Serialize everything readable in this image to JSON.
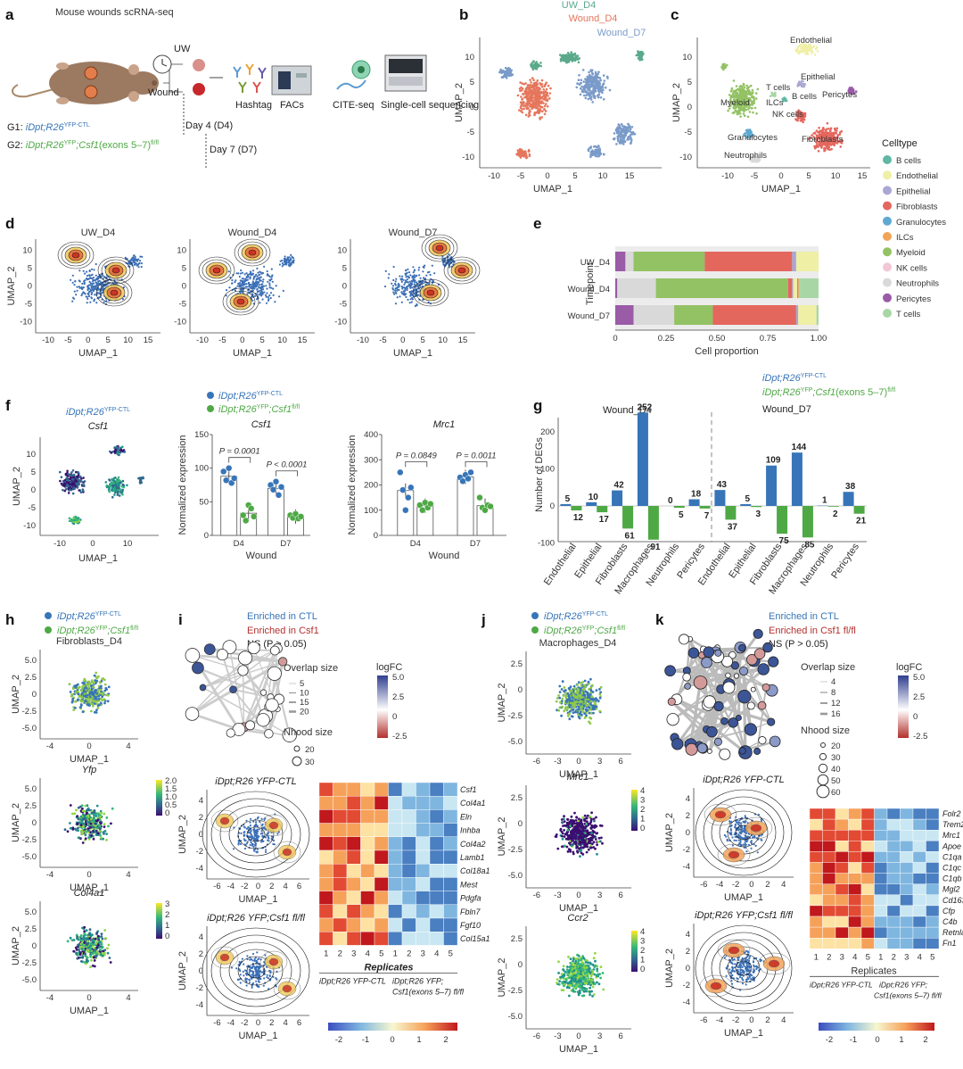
{
  "panel_labels": [
    "a",
    "b",
    "c",
    "d",
    "e",
    "f",
    "g",
    "h",
    "i",
    "j",
    "k"
  ],
  "colors": {
    "B cells": "#5fb8a4",
    "Endothelial": "#efefa6",
    "Epithelial": "#aaa7d3",
    "Fibroblasts": "#e4675e",
    "Granulocytes": "#5ea9d2",
    "ILCs": "#f2a457",
    "Myeloid": "#93c264",
    "NK cells": "#f2c6d6",
    "Neutrophils": "#d9d9d9",
    "Pericytes": "#9a5ba7",
    "T cells": "#a8d7a5",
    "ctl": "#3775b8",
    "csf1": "#4ea945",
    "uw": "#5aa98b",
    "wound_d4": "#e5765c",
    "wound_d7": "#7a9bc9"
  },
  "panel_a": {
    "title": "Mouse wounds scRNA-seq",
    "uw": "UW",
    "wound": "Wound",
    "steps": [
      "Hashtag",
      "FACs",
      "CITE-seq",
      "Single-cell sequencing"
    ],
    "g1_prefix": "G1: ",
    "g1": "iDpt;R26",
    "g1_sup": "YFP-CTL",
    "g2_prefix": "G2: ",
    "g2": "iDpt;R26",
    "g2_sup": "YFP",
    "g2_tail": ";Csf1",
    "g2_exons": "(exons 5–7)",
    "g2_sup2": "fl/fl",
    "day4": "Day 4 (D4)",
    "day7": "Day 7 (D7)"
  },
  "panel_b": {
    "legend": [
      "UW_D4",
      "Wound_D4",
      "Wound_D7"
    ],
    "xlabel": "UMAP_1",
    "ylabel": "UMAP_2",
    "xticks": [
      "-10",
      "-5",
      "0",
      "5",
      "10",
      "15"
    ],
    "yticks": [
      "10",
      "5",
      "0",
      "-5",
      "-10"
    ]
  },
  "panel_c": {
    "labels": [
      "Endothelial",
      "Epithelial",
      "T cells",
      "B cells",
      "Pericytes",
      "Myeloid",
      "ILCs",
      "NK cells",
      "Granulocytes",
      "Fibroblasts",
      "Neutrophils"
    ],
    "xlabel": "UMAP_1",
    "ylabel": "UMAP_2",
    "legend_title": "Celltype",
    "legend": [
      "B cells",
      "Endothelial",
      "Epithelial",
      "Fibroblasts",
      "Granulocytes",
      "ILCs",
      "Myeloid",
      "NK cells",
      "Neutrophils",
      "Pericytes",
      "T cells"
    ]
  },
  "panel_d": {
    "titles": [
      "UW_D4",
      "Wound_D4",
      "Wound_D7"
    ],
    "xlabel": "UMAP_1",
    "ylabel": "UMAP_2"
  },
  "panel_f_umap": {
    "title": "iDpt;R26",
    "title_sup": "YFP-CTL",
    "gene": "Csf1",
    "xlabel": "UMAP_1",
    "ylabel": "UMAP_2"
  },
  "panel_f_legend": {
    "ctl": "iDpt;R26",
    "ctl_sup": "YFP-CTL",
    "csf1": "iDpt;R26",
    "csf1_sup": "YFP",
    "csf1_tail": ";Csf1",
    "csf1_sup2": "fl/fl"
  },
  "panel_h": {
    "legend_ctl": "iDpt;R26",
    "legend_ctl_sup": "YFP-CTL",
    "legend_csf1": "iDpt;R26",
    "legend_csf1_sup": "YFP",
    "legend_csf1_tail": ";Csf1",
    "legend_csf1_sup2": "fl/fl",
    "titles": [
      "Fibroblasts_D4",
      "Yfp",
      "Col4a1"
    ],
    "xlabel": "UMAP_1",
    "ylabel": "UMAP_2"
  },
  "panel_i": {
    "enriched_ctl": "Enriched in CTL",
    "enriched_csf1": "Enriched in Csf1",
    "enriched_sup": "fl/fl",
    "ns": "NS (P > 0.05)",
    "overlap_title": "Overlap size",
    "overlap": [
      "5",
      "10",
      "15",
      "20"
    ],
    "nhood_title": "Nhood size",
    "nhood": [
      "20",
      "30"
    ],
    "logfc_title": "logFC",
    "logfc_ticks": [
      "5.0",
      "2.5",
      "0",
      "-2.5"
    ],
    "kde1_title": "iDpt;R26",
    "kde1_sup": "YFP-CTL",
    "kde2_title": "iDpt;R26",
    "kde2_sup": "YFP",
    "kde2_tail": ";Csf1",
    "kde2_sup2": "fl/fl",
    "genes": [
      "Csf1",
      "Col4a1",
      "Eln",
      "Inhba",
      "Col4a2",
      "Lamb1",
      "Col18a1",
      "Mest",
      "Pdgfa",
      "Fbln7",
      "Fgf10",
      "Col15a1"
    ],
    "replicates": "Replicates",
    "rep_ctl": "iDpt;R26",
    "rep_ctl_sup": "YFP-CTL",
    "rep_csf1": "iDpt;R26",
    "rep_csf1_sup": "YFP",
    "rep_csf1_tail": ";",
    "rep_csf1_l2": "Csf1(exons 5–7)",
    "rep_csf1_sup2": "fl/fl",
    "cbar_ticks": [
      "-2",
      "-1",
      "0",
      "1",
      "2"
    ]
  },
  "panel_j": {
    "legend_ctl": "iDpt;R26",
    "legend_ctl_sup": "YFP-CTL",
    "legend_csf1": "iDpt;R26",
    "legend_csf1_sup": "YFP",
    "legend_csf1_tail": ";Csf1",
    "legend_csf1_sup2": "fl/fl",
    "titles": [
      "Macrophages_D4",
      "Mrc1",
      "Ccr2"
    ],
    "xlabel": "UMAP_1",
    "ylabel": "UMAP_2"
  },
  "panel_k": {
    "enriched_ctl": "Enriched in CTL",
    "enriched_csf1": "Enriched in Csf1",
    "enriched_sup": "fl/fl",
    "ns": "NS (P > 0.05)",
    "overlap_title": "Overlap size",
    "overlap": [
      "4",
      "8",
      "12",
      "16"
    ],
    "nhood_title": "Nhood size",
    "nhood": [
      "20",
      "30",
      "40",
      "50",
      "60"
    ],
    "logfc_title": "logFC",
    "logfc_ticks": [
      "5.0",
      "2.5",
      "0",
      "-2.5"
    ],
    "genes": [
      "Folr2",
      "Trem2",
      "Mrc1",
      "Apoe",
      "C1qa",
      "C1qc",
      "C1qb",
      "Mgl2",
      "Cd163",
      "Cfp",
      "C4b",
      "Retnla",
      "Fn1"
    ],
    "replicates": "Replicates",
    "cbar_ticks": [
      "-2",
      "-1",
      "0",
      "1",
      "2"
    ]
  },
  "chart_data": [
    {
      "id": "e",
      "type": "bar",
      "orientation": "horizontal",
      "stacked": true,
      "title": "",
      "xlabel": "Cell proportion",
      "ylabel": "Timepoint",
      "categories": [
        "UW_D4",
        "Wound_D4",
        "Wound_D7"
      ],
      "xlim": [
        0,
        1
      ],
      "xticks": [
        "0",
        "0.25",
        "0.50",
        "0.75",
        "1.00"
      ],
      "series": [
        {
          "name": "B cells",
          "values": [
            0.0,
            0.0,
            0.0
          ]
        },
        {
          "name": "Endothelial",
          "values": [
            0.11,
            0.02,
            0.09
          ]
        },
        {
          "name": "Epithelial",
          "values": [
            0.02,
            0.005,
            0.01
          ]
        },
        {
          "name": "Fibroblasts",
          "values": [
            0.43,
            0.02,
            0.41
          ]
        },
        {
          "name": "Granulocytes",
          "values": [
            0.0,
            0.005,
            0.0
          ]
        },
        {
          "name": "ILCs",
          "values": [
            0.0,
            0.005,
            0.0
          ]
        },
        {
          "name": "Myeloid",
          "values": [
            0.35,
            0.65,
            0.19
          ]
        },
        {
          "name": "NK cells",
          "values": [
            0.0,
            0.0,
            0.0
          ]
        },
        {
          "name": "Neutrophils",
          "values": [
            0.04,
            0.19,
            0.2
          ]
        },
        {
          "name": "Pericytes",
          "values": [
            0.05,
            0.01,
            0.09
          ]
        },
        {
          "name": "T cells",
          "values": [
            0.0,
            0.01,
            0.01
          ]
        }
      ]
    },
    {
      "id": "f_csf1",
      "type": "bar",
      "title": "Csf1",
      "xlabel": "Wound",
      "ylabel": "Normalized expression",
      "categories": [
        "D4",
        "D7"
      ],
      "ylim": [
        0,
        150
      ],
      "yticks": [
        "0",
        "50",
        "100",
        "150"
      ],
      "series": [
        {
          "name": "iDpt;R26 YFP-CTL",
          "values": [
            88,
            70
          ]
        },
        {
          "name": "iDpt;R26 YFP;Csf1 fl/fl",
          "values": [
            33,
            28
          ]
        }
      ],
      "points": [
        [
          95,
          82,
          100,
          78,
          85
        ],
        [
          30,
          22,
          45,
          40,
          28
        ],
        [
          75,
          68,
          80,
          60,
          72
        ],
        [
          30,
          26,
          32,
          25,
          28
        ]
      ],
      "pvalues": [
        "P = 0.0001",
        "P < 0.0001"
      ]
    },
    {
      "id": "f_mrc1",
      "type": "bar",
      "title": "Mrc1",
      "xlabel": "Wound",
      "ylabel": "Normalized expression",
      "categories": [
        "D4",
        "D7"
      ],
      "ylim": [
        0,
        400
      ],
      "yticks": [
        "0",
        "100",
        "200",
        "300",
        "400"
      ],
      "series": [
        {
          "name": "iDpt;R26 YFP-CTL",
          "values": [
            178,
            232
          ]
        },
        {
          "name": "iDpt;R26 YFP;Csf1 fl/fl",
          "values": [
            118,
            118
          ]
        }
      ],
      "points": [
        [
          250,
          180,
          100,
          150,
          190
        ],
        [
          120,
          100,
          130,
          110,
          125
        ],
        [
          230,
          215,
          240,
          225,
          250
        ],
        [
          150,
          110,
          100,
          120,
          115
        ]
      ],
      "pvalues": [
        "P = 0.0849",
        "P = 0.0011"
      ]
    },
    {
      "id": "g",
      "type": "bar",
      "title": "",
      "ylabel": "Number of DEGs",
      "ylim": [
        -100,
        260
      ],
      "yticks": [
        "-100",
        "0",
        "100",
        "200"
      ],
      "groups": [
        "Wound_D4",
        "Wound_D7"
      ],
      "legend": [
        "iDpt;R26 YFP-CTL",
        "iDpt;R26 YFP;Csf1(exons 5–7) fl/fl"
      ],
      "categories": [
        "Endothelial",
        "Epithelial",
        "Fibroblasts",
        "Macrophages",
        "Neutrophils",
        "Pericytes",
        "Endothelial",
        "Epithelial",
        "Fibroblasts",
        "Macrophages",
        "Neutrophils",
        "Pericytes"
      ],
      "series": [
        {
          "name": "up",
          "values": [
            5,
            10,
            42,
            252,
            0,
            18,
            43,
            5,
            109,
            144,
            1,
            38
          ]
        },
        {
          "name": "down",
          "values": [
            -12,
            -17,
            -61,
            -91,
            -5,
            -7,
            -37,
            -3,
            -75,
            -85,
            -2,
            -21
          ]
        }
      ],
      "labels_up": [
        "5",
        "10",
        "42",
        "252",
        "0",
        "18",
        "43",
        "5",
        "109",
        "144",
        "1",
        "38"
      ],
      "labels_down": [
        "12",
        "17",
        "61",
        "91",
        "5",
        "7",
        "37",
        "3",
        "75",
        "85",
        "2",
        "21"
      ]
    }
  ]
}
